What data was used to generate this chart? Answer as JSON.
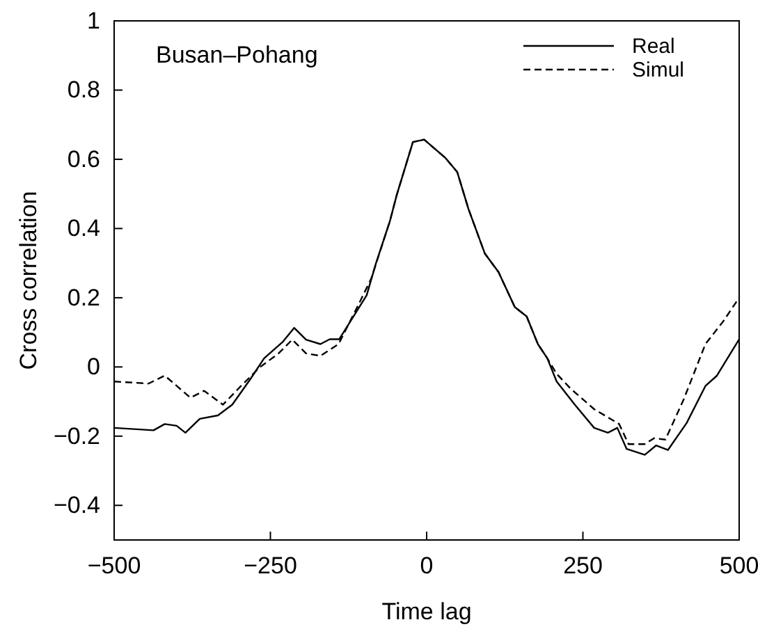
{
  "chart_data": {
    "type": "line",
    "xlabel": "Time lag",
    "ylabel": "Cross correlation",
    "annotations": [
      "Busan–Pohang"
    ],
    "xlim": [
      -500,
      500
    ],
    "xticks": [
      -500,
      -250,
      0,
      250,
      500
    ],
    "ylim": [
      -0.5,
      1
    ],
    "yticks": [
      -0.4,
      -0.2,
      0,
      0.2,
      0.4,
      0.6,
      0.8,
      1
    ],
    "legend": "top right",
    "grid": false,
    "marker": "none",
    "series": [
      {
        "name": "Real",
        "color": "#000000",
        "line_style": "solid",
        "x": [
          -500,
          -437,
          -419,
          -400,
          -386,
          -363,
          -334,
          -311,
          -282,
          -260,
          -230,
          -212,
          -193,
          -170,
          -155,
          -140,
          -117,
          -96,
          -81,
          -59,
          -48,
          -22,
          -4,
          30,
          49,
          67,
          93,
          115,
          141,
          160,
          178,
          193,
          208,
          237,
          268,
          290,
          305,
          320,
          349,
          367,
          386,
          416,
          446,
          464,
          500
        ],
        "values": [
          -0.176,
          -0.183,
          -0.165,
          -0.17,
          -0.19,
          -0.15,
          -0.14,
          -0.109,
          -0.035,
          0.025,
          0.073,
          0.113,
          0.079,
          0.066,
          0.08,
          0.08,
          0.146,
          0.207,
          0.3,
          0.42,
          0.496,
          0.65,
          0.657,
          0.604,
          0.563,
          0.456,
          0.328,
          0.274,
          0.173,
          0.146,
          0.066,
          0.025,
          -0.042,
          -0.109,
          -0.176,
          -0.19,
          -0.176,
          -0.237,
          -0.254,
          -0.227,
          -0.24,
          -0.162,
          -0.055,
          -0.026,
          0.08
        ]
      },
      {
        "name": "Simul",
        "color": "#000000",
        "line_style": "dashed",
        "x": [
          -500,
          -445,
          -419,
          -378,
          -356,
          -326,
          -297,
          -267,
          -237,
          -215,
          -193,
          -170,
          -141,
          -111,
          -89,
          -59,
          -48,
          -22,
          -4,
          30,
          49,
          67,
          93,
          115,
          141,
          160,
          178,
          193,
          208,
          230,
          268,
          308,
          323,
          349,
          364,
          382,
          411,
          446,
          475,
          500
        ],
        "values": [
          -0.042,
          -0.048,
          -0.025,
          -0.089,
          -0.069,
          -0.109,
          -0.055,
          -0.001,
          0.039,
          0.079,
          0.039,
          0.032,
          0.066,
          0.173,
          0.254,
          0.42,
          0.496,
          0.65,
          0.657,
          0.604,
          0.563,
          0.456,
          0.328,
          0.274,
          0.173,
          0.146,
          0.066,
          0.025,
          -0.02,
          -0.062,
          -0.122,
          -0.165,
          -0.223,
          -0.223,
          -0.206,
          -0.21,
          -0.095,
          0.066,
          0.133,
          0.2
        ]
      }
    ]
  }
}
